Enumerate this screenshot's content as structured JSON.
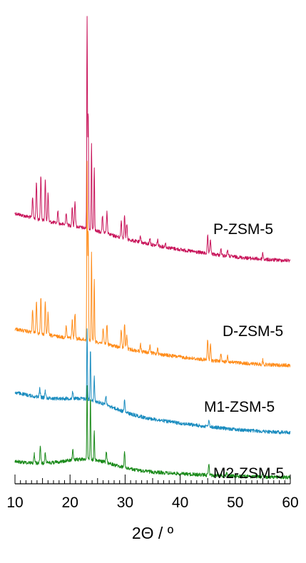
{
  "chart_data": {
    "type": "line",
    "xlabel": "2Θ / º",
    "xlim": [
      10,
      60
    ],
    "x_ticks": [
      "10",
      "20",
      "30",
      "40",
      "50",
      "60"
    ],
    "y_axis": "none",
    "grid": false,
    "legend": "none",
    "series": [
      {
        "name": "P-ZSM-5",
        "color": "#c8145a",
        "peaks": [
          {
            "x": 13.2,
            "h": 0.1
          },
          {
            "x": 13.9,
            "h": 0.17
          },
          {
            "x": 14.7,
            "h": 0.2
          },
          {
            "x": 15.5,
            "h": 0.19
          },
          {
            "x": 16.0,
            "h": 0.13
          },
          {
            "x": 17.8,
            "h": 0.06
          },
          {
            "x": 19.3,
            "h": 0.06
          },
          {
            "x": 20.4,
            "h": 0.09
          },
          {
            "x": 20.9,
            "h": 0.12
          },
          {
            "x": 23.1,
            "h": 1.0
          },
          {
            "x": 23.3,
            "h": 0.55
          },
          {
            "x": 23.9,
            "h": 0.4
          },
          {
            "x": 24.4,
            "h": 0.3
          },
          {
            "x": 25.9,
            "h": 0.08
          },
          {
            "x": 26.7,
            "h": 0.1
          },
          {
            "x": 29.3,
            "h": 0.08
          },
          {
            "x": 29.9,
            "h": 0.11
          },
          {
            "x": 30.3,
            "h": 0.07
          },
          {
            "x": 32.8,
            "h": 0.03
          },
          {
            "x": 34.5,
            "h": 0.03
          },
          {
            "x": 35.9,
            "h": 0.03
          },
          {
            "x": 37.3,
            "h": 0.02
          },
          {
            "x": 45.0,
            "h": 0.08
          },
          {
            "x": 45.5,
            "h": 0.07
          },
          {
            "x": 47.4,
            "h": 0.03
          },
          {
            "x": 48.6,
            "h": 0.03
          },
          {
            "x": 55.0,
            "h": 0.03
          }
        ]
      },
      {
        "name": "D-ZSM-5",
        "color": "#ff8c1a",
        "peaks": [
          {
            "x": 13.2,
            "h": 0.1
          },
          {
            "x": 13.9,
            "h": 0.14
          },
          {
            "x": 14.7,
            "h": 0.16
          },
          {
            "x": 15.5,
            "h": 0.14
          },
          {
            "x": 16.0,
            "h": 0.1
          },
          {
            "x": 19.3,
            "h": 0.05
          },
          {
            "x": 20.4,
            "h": 0.08
          },
          {
            "x": 20.9,
            "h": 0.11
          },
          {
            "x": 23.1,
            "h": 0.8
          },
          {
            "x": 23.3,
            "h": 0.5
          },
          {
            "x": 23.9,
            "h": 0.4
          },
          {
            "x": 24.4,
            "h": 0.28
          },
          {
            "x": 26.0,
            "h": 0.07
          },
          {
            "x": 26.7,
            "h": 0.09
          },
          {
            "x": 29.3,
            "h": 0.08
          },
          {
            "x": 29.9,
            "h": 0.11
          },
          {
            "x": 30.3,
            "h": 0.06
          },
          {
            "x": 32.8,
            "h": 0.03
          },
          {
            "x": 34.5,
            "h": 0.03
          },
          {
            "x": 35.9,
            "h": 0.03
          },
          {
            "x": 45.0,
            "h": 0.09
          },
          {
            "x": 45.5,
            "h": 0.07
          },
          {
            "x": 47.4,
            "h": 0.03
          },
          {
            "x": 48.6,
            "h": 0.03
          },
          {
            "x": 55.0,
            "h": 0.02
          }
        ]
      },
      {
        "name": "M1-ZSM-5",
        "color": "#1a8cbf",
        "peaks": [
          {
            "x": 14.5,
            "h": 0.04
          },
          {
            "x": 15.5,
            "h": 0.03
          },
          {
            "x": 20.5,
            "h": 0.03
          },
          {
            "x": 23.1,
            "h": 0.3
          },
          {
            "x": 23.7,
            "h": 0.22
          },
          {
            "x": 24.4,
            "h": 0.1
          },
          {
            "x": 26.5,
            "h": 0.04
          },
          {
            "x": 29.9,
            "h": 0.05
          },
          {
            "x": 45.2,
            "h": 0.03
          }
        ]
      },
      {
        "name": "M2-ZSM-5",
        "color": "#1a8a1a",
        "peaks": [
          {
            "x": 13.5,
            "h": 0.04
          },
          {
            "x": 14.6,
            "h": 0.07
          },
          {
            "x": 15.5,
            "h": 0.05
          },
          {
            "x": 20.5,
            "h": 0.05
          },
          {
            "x": 23.1,
            "h": 0.33
          },
          {
            "x": 23.7,
            "h": 0.28
          },
          {
            "x": 24.4,
            "h": 0.13
          },
          {
            "x": 26.6,
            "h": 0.05
          },
          {
            "x": 29.9,
            "h": 0.07
          },
          {
            "x": 45.2,
            "h": 0.05
          },
          {
            "x": 48.5,
            "h": 0.02
          },
          {
            "x": 55.0,
            "h": 0.02
          }
        ]
      }
    ]
  }
}
